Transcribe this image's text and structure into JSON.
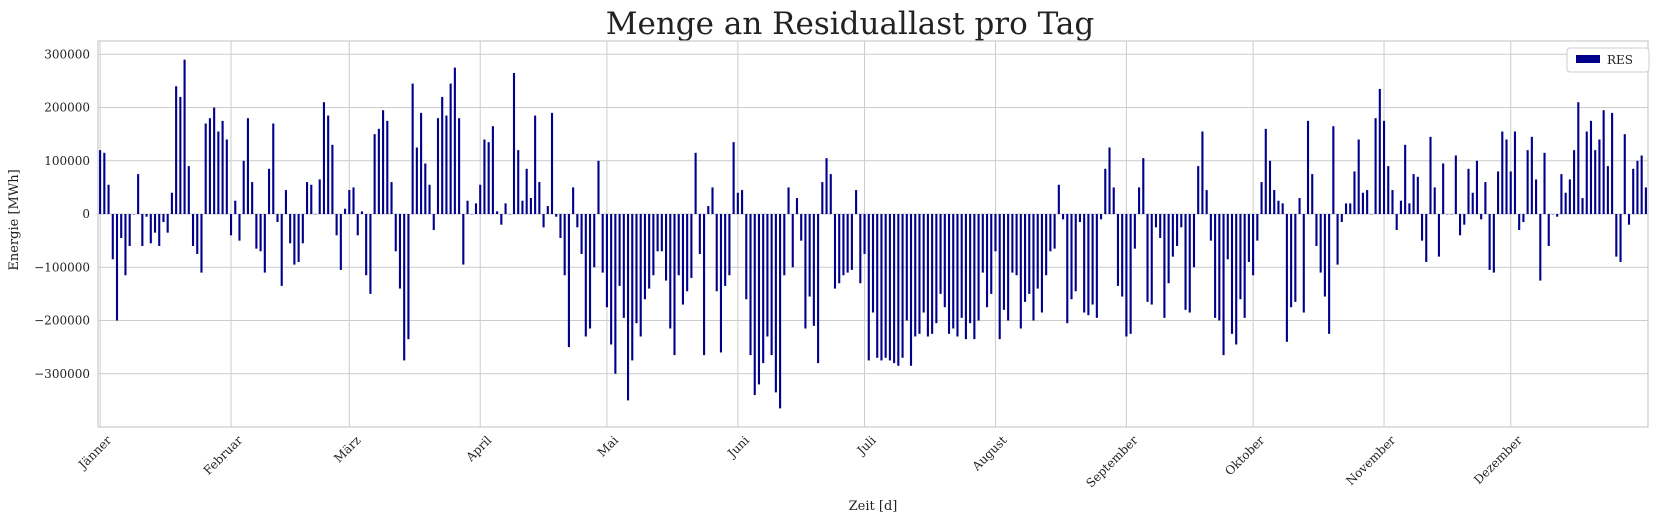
{
  "chart_data": {
    "type": "bar",
    "title": "Menge an Residuallast pro Tag",
    "xlabel": "Zeit [d]",
    "ylabel": "Energie [MWh]",
    "ylim": [
      -400000,
      325000
    ],
    "yticks": [
      300000,
      200000,
      100000,
      0,
      -100000,
      -200000,
      -300000
    ],
    "ytick_labels": [
      "300000",
      "200000",
      "100000",
      "0",
      "−100000",
      "−200000",
      "−300000"
    ],
    "month_labels": [
      "Jänner",
      "Februar",
      "März",
      "April",
      "Mai",
      "Juni",
      "Juli",
      "August",
      "September",
      "Oktober",
      "November",
      "Dezember"
    ],
    "month_start_day": [
      0,
      31,
      59,
      90,
      120,
      151,
      181,
      212,
      243,
      273,
      304,
      334
    ],
    "grid": true,
    "legend_position": "top-right",
    "colors": {
      "bar": "#00008b",
      "grid": "#cccccc",
      "axes": "#cccccc",
      "background": "#ffffff"
    },
    "series": [
      {
        "name": "RES",
        "values": [
          120000,
          115000,
          55000,
          -85000,
          -200000,
          -45000,
          -115000,
          -60000,
          0,
          75000,
          -60000,
          -5000,
          -55000,
          -35000,
          -60000,
          -15000,
          -35000,
          40000,
          240000,
          220000,
          290000,
          90000,
          -60000,
          -75000,
          -110000,
          170000,
          180000,
          200000,
          155000,
          175000,
          140000,
          -40000,
          25000,
          -50000,
          100000,
          180000,
          60000,
          -65000,
          -70000,
          -110000,
          85000,
          170000,
          -15000,
          -135000,
          45000,
          -55000,
          -95000,
          -90000,
          -55000,
          60000,
          55000,
          0,
          65000,
          210000,
          185000,
          130000,
          -40000,
          -105000,
          10000,
          45000,
          50000,
          -40000,
          5000,
          -115000,
          -150000,
          150000,
          160000,
          195000,
          175000,
          60000,
          -70000,
          -140000,
          -275000,
          -235000,
          245000,
          125000,
          190000,
          95000,
          55000,
          -30000,
          180000,
          220000,
          185000,
          245000,
          275000,
          180000,
          -95000,
          25000,
          0,
          20000,
          55000,
          140000,
          135000,
          165000,
          5000,
          -20000,
          20000,
          0,
          265000,
          120000,
          25000,
          85000,
          30000,
          185000,
          60000,
          -25000,
          15000,
          190000,
          -5000,
          -45000,
          -115000,
          -250000,
          50000,
          -25000,
          -75000,
          -230000,
          -215000,
          -100000,
          100000,
          -110000,
          -175000,
          -245000,
          -300000,
          -135000,
          -195000,
          -350000,
          -275000,
          -205000,
          -230000,
          -160000,
          -140000,
          -115000,
          -70000,
          -70000,
          -125000,
          -215000,
          -265000,
          -115000,
          -170000,
          -145000,
          -120000,
          115000,
          -75000,
          -265000,
          15000,
          50000,
          -145000,
          -260000,
          -135000,
          -115000,
          135000,
          40000,
          45000,
          -160000,
          -265000,
          -340000,
          -320000,
          -280000,
          -230000,
          -265000,
          -335000,
          -365000,
          -115000,
          50000,
          -100000,
          30000,
          -50000,
          -215000,
          -155000,
          -210000,
          -280000,
          60000,
          105000,
          75000,
          -140000,
          -130000,
          -115000,
          -110000,
          -105000,
          45000,
          -130000,
          -75000,
          -275000,
          -185000,
          -270000,
          -275000,
          -270000,
          -275000,
          -280000,
          -285000,
          -270000,
          -200000,
          -285000,
          -230000,
          -225000,
          -185000,
          -230000,
          -225000,
          -205000,
          -150000,
          -175000,
          -225000,
          -215000,
          -230000,
          -195000,
          -235000,
          -205000,
          -235000,
          -200000,
          -110000,
          -175000,
          -150000,
          -70000,
          -235000,
          -180000,
          -200000,
          -110000,
          -115000,
          -215000,
          -165000,
          -150000,
          -200000,
          -140000,
          -185000,
          -115000,
          -70000,
          -65000,
          55000,
          -10000,
          -205000,
          -160000,
          -145000,
          -15000,
          -185000,
          -190000,
          -170000,
          -195000,
          -10000,
          85000,
          125000,
          50000,
          -135000,
          -155000,
          -230000,
          -225000,
          -65000,
          50000,
          105000,
          -165000,
          -170000,
          -25000,
          -45000,
          -195000,
          -130000,
          -80000,
          -60000,
          -25000,
          -180000,
          -185000,
          -100000,
          90000,
          155000,
          45000,
          -50000,
          -195000,
          -200000,
          -265000,
          -85000,
          -225000,
          -245000,
          -160000,
          -195000,
          -90000,
          -115000,
          -50000,
          60000,
          160000,
          100000,
          45000,
          25000,
          20000,
          -240000,
          -175000,
          -165000,
          30000,
          -185000,
          175000,
          75000,
          -60000,
          -110000,
          -155000,
          -225000,
          165000,
          -95000,
          -15000,
          20000,
          20000,
          80000,
          140000,
          40000,
          45000,
          0,
          180000,
          235000,
          175000,
          90000,
          45000,
          -30000,
          25000,
          130000,
          20000,
          75000,
          70000,
          -50000,
          -90000,
          145000,
          50000,
          -80000,
          95000,
          0,
          0,
          110000,
          -40000,
          -20000,
          85000,
          40000,
          100000,
          -10000,
          60000,
          -105000,
          -110000,
          80000,
          155000,
          140000,
          80000,
          155000,
          -30000,
          -15000,
          120000,
          145000,
          65000,
          -125000,
          115000,
          -60000,
          0,
          -5000,
          75000,
          40000,
          65000,
          120000,
          210000,
          30000,
          155000,
          175000,
          120000,
          140000,
          195000,
          90000,
          190000,
          -80000,
          -90000,
          150000,
          -20000,
          85000,
          100000,
          110000,
          50000
        ]
      }
    ]
  }
}
